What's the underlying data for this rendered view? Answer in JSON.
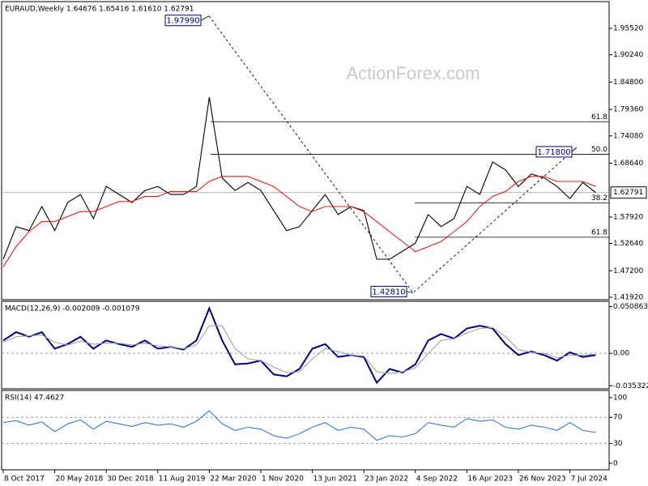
{
  "chart_data": [
    {
      "type": "line",
      "title": "EURAUD,Weekly  1.64676 1.65416 1.61610 1.62791",
      "watermark": "ActionForex.com",
      "categories": [
        "8 Oct 2017",
        null,
        null,
        null,
        "20 May 2018",
        null,
        null,
        null,
        "30 Dec 2018",
        null,
        null,
        null,
        "11 Aug 2019",
        null,
        null,
        null,
        "22 Mar 2020",
        null,
        null,
        null,
        "1 Nov 2020",
        null,
        null,
        null,
        "13 Jun 2021",
        null,
        null,
        null,
        "23 Jan 2022",
        null,
        null,
        null,
        "4 Sep 2022",
        null,
        null,
        null,
        "16 Apr 2023",
        null,
        null,
        null,
        "26 Nov 2023",
        null,
        null,
        null,
        "7 Jul 2024",
        null,
        null
      ],
      "series": [
        {
          "color": "#000000",
          "values": [
            1.495,
            1.56,
            1.552,
            1.6,
            1.552,
            1.608,
            1.624,
            1.576,
            1.64,
            1.624,
            1.608,
            1.632,
            1.64,
            1.624,
            1.624,
            1.64,
            1.818,
            1.657,
            1.632,
            1.648,
            1.632,
            1.592,
            1.552,
            1.56,
            1.592,
            1.624,
            1.584,
            1.6,
            1.592,
            1.495,
            1.495,
            1.511,
            1.527,
            1.584,
            1.56,
            1.576,
            1.64,
            1.624,
            1.689,
            1.673,
            1.64,
            1.665,
            1.657,
            1.64,
            1.616,
            1.648,
            1.62791
          ]
        },
        {
          "color": "#e41a1c",
          "values": [
            1.48,
            1.52,
            1.55,
            1.57,
            1.57,
            1.58,
            1.59,
            1.59,
            1.6,
            1.61,
            1.61,
            1.62,
            1.62,
            1.63,
            1.63,
            1.63,
            1.65,
            1.66,
            1.66,
            1.66,
            1.65,
            1.64,
            1.62,
            1.6,
            1.59,
            1.6,
            1.6,
            1.6,
            1.59,
            1.57,
            1.55,
            1.53,
            1.51,
            1.52,
            1.53,
            1.55,
            1.57,
            1.6,
            1.62,
            1.63,
            1.65,
            1.66,
            1.66,
            1.65,
            1.65,
            1.65,
            1.64
          ]
        }
      ],
      "ylim": [
        1.4143,
        2.0085
      ],
      "yticks": [
        {
          "value": 1.9552,
          "label": "1.95520"
        },
        {
          "value": 1.9024,
          "label": "1.90240"
        },
        {
          "value": 1.848,
          "label": "1.84800"
        },
        {
          "value": 1.7936,
          "label": "1.79360"
        },
        {
          "value": 1.7408,
          "label": "1.74080"
        },
        {
          "value": 1.6864,
          "label": "1.68640"
        },
        {
          "value": 1.5792,
          "label": "1.57920"
        },
        {
          "value": 1.5264,
          "label": "1.52640"
        },
        {
          "value": 1.472,
          "label": "1.47200"
        },
        {
          "value": 1.4192,
          "label": "1.41920"
        }
      ],
      "last_price": {
        "value": 1.62791,
        "label": "1.62791"
      },
      "annotations": [
        {
          "value": 1.9799,
          "label": "1.97990"
        },
        {
          "value": 1.4281,
          "label": "1.42810"
        },
        {
          "value": 1.718,
          "label": "1.71800"
        }
      ],
      "fib_levels": [
        {
          "value": 1.7691,
          "label": "61.8"
        },
        {
          "value": 1.704,
          "label": "50.0"
        },
        {
          "value": 1.6073,
          "label": "38.2"
        },
        {
          "value": 1.5388,
          "label": "61.8"
        }
      ]
    },
    {
      "type": "line",
      "title": "MACD(12,26,9) -0.002009 -0.001079",
      "series": [
        {
          "color": "#000080",
          "values": [
            0.014,
            0.023,
            0.018,
            0.023,
            0.005,
            0.01,
            0.018,
            0.005,
            0.014,
            0.01,
            0.007,
            0.014,
            0.005,
            0.007,
            0.004,
            0.014,
            0.049,
            0.014,
            -0.012,
            -0.011,
            -0.008,
            -0.023,
            -0.025,
            -0.017,
            0.005,
            0.01,
            -0.004,
            -0.002,
            -0.004,
            -0.032,
            -0.017,
            -0.021,
            -0.012,
            0.014,
            0.021,
            0.016,
            0.027,
            0.03,
            0.027,
            0.01,
            -0.002,
            0.002,
            -0.002,
            -0.008,
            0.001,
            -0.004,
            -0.002
          ]
        },
        {
          "color": "#a0a0a0",
          "values": [
            0.012,
            0.018,
            0.019,
            0.02,
            0.012,
            0.009,
            0.013,
            0.01,
            0.011,
            0.011,
            0.009,
            0.011,
            0.008,
            0.007,
            0.005,
            0.009,
            0.03,
            0.03,
            0.005,
            -0.006,
            -0.008,
            -0.015,
            -0.021,
            -0.02,
            -0.006,
            0.005,
            0.002,
            -0.002,
            -0.003,
            -0.02,
            -0.022,
            -0.02,
            -0.016,
            0.0,
            0.014,
            0.016,
            0.022,
            0.027,
            0.028,
            0.018,
            0.004,
            0.001,
            0.0,
            -0.005,
            -0.002,
            -0.002,
            -0.001
          ]
        }
      ],
      "ylim": [
        -0.0386,
        0.0565
      ],
      "yticks": [
        0.050863,
        {
          "value": 0,
          "label": "0.00"
        },
        -0.035322
      ],
      "grid": true
    },
    {
      "type": "line",
      "title": "RSI(14) 47.4627",
      "series": [
        {
          "color": "#3a78d8",
          "values": [
            62,
            65,
            58,
            63,
            48,
            60,
            66,
            52,
            64,
            60,
            56,
            62,
            58,
            60,
            55,
            64,
            80,
            60,
            50,
            55,
            52,
            42,
            38,
            45,
            55,
            62,
            50,
            55,
            52,
            35,
            42,
            40,
            45,
            62,
            58,
            55,
            68,
            64,
            66,
            55,
            52,
            58,
            55,
            50,
            62,
            50,
            47
          ]
        }
      ],
      "ylim": [
        -10,
        111
      ],
      "yticks": [
        100,
        70,
        30,
        0
      ],
      "grid": true
    }
  ]
}
